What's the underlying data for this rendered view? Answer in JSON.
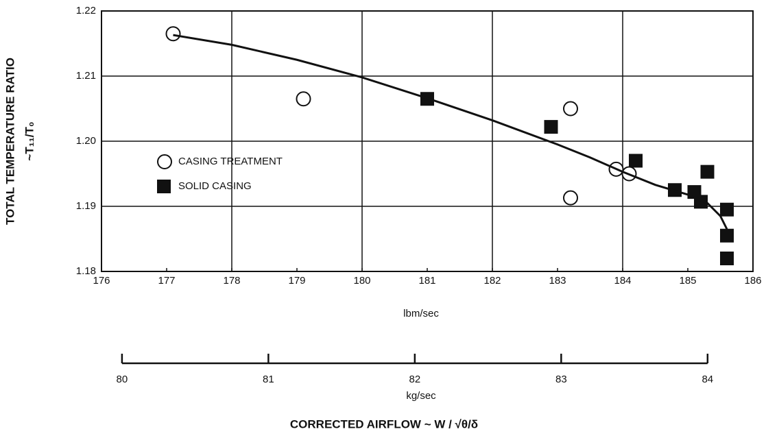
{
  "chart_data": {
    "type": "scatter",
    "title": "CORRECTED AIRFLOW ~ W / √θ/δ",
    "xlabel": "lbm/sec",
    "ylabel": "TOTAL TEMPERATURE RATIO",
    "ylabel2": "~T₁₁/T₀",
    "x2label": "kg/sec",
    "xlim": [
      176,
      186
    ],
    "xticks": [
      176,
      177,
      178,
      179,
      180,
      181,
      182,
      183,
      184,
      185,
      186
    ],
    "xgrid": [
      178,
      180,
      182,
      184
    ],
    "ylim": [
      1.18,
      1.22
    ],
    "yticks": [
      1.18,
      1.19,
      {
        "value": 1.2,
        "label": "1.20"
      },
      1.21,
      1.22
    ],
    "x2lim": [
      79.86,
      84.31
    ],
    "x2ticks": [
      80,
      81,
      82,
      83,
      84
    ],
    "grid": true,
    "series": [
      {
        "name": "CASING TREATMENT",
        "marker": "circle-open",
        "color": "#111111",
        "x": [
          177.1,
          179.1,
          183.2,
          183.2,
          183.9,
          184.1
        ],
        "values": [
          1.2165,
          1.2065,
          1.205,
          1.1913,
          1.1957,
          1.195
        ]
      },
      {
        "name": "SOLID CASING",
        "marker": "square",
        "color": "#111111",
        "x": [
          181.0,
          182.9,
          184.2,
          184.8,
          185.1,
          185.2,
          185.3,
          185.6,
          185.6,
          185.6
        ],
        "values": [
          1.2065,
          1.2022,
          1.197,
          1.1925,
          1.1922,
          1.1907,
          1.1953,
          1.1895,
          1.1855,
          1.182
        ]
      },
      {
        "marker": "line",
        "color": "#111111",
        "x": [
          177.1,
          178,
          179,
          180,
          181,
          182,
          183,
          183.5,
          184,
          184.5,
          185,
          185.3,
          185.5,
          185.6
        ],
        "values": [
          1.2163,
          1.2148,
          1.2125,
          1.2098,
          1.2066,
          1.2032,
          1.1995,
          1.1975,
          1.1953,
          1.1933,
          1.1918,
          1.1905,
          1.1885,
          1.1865
        ]
      }
    ]
  }
}
